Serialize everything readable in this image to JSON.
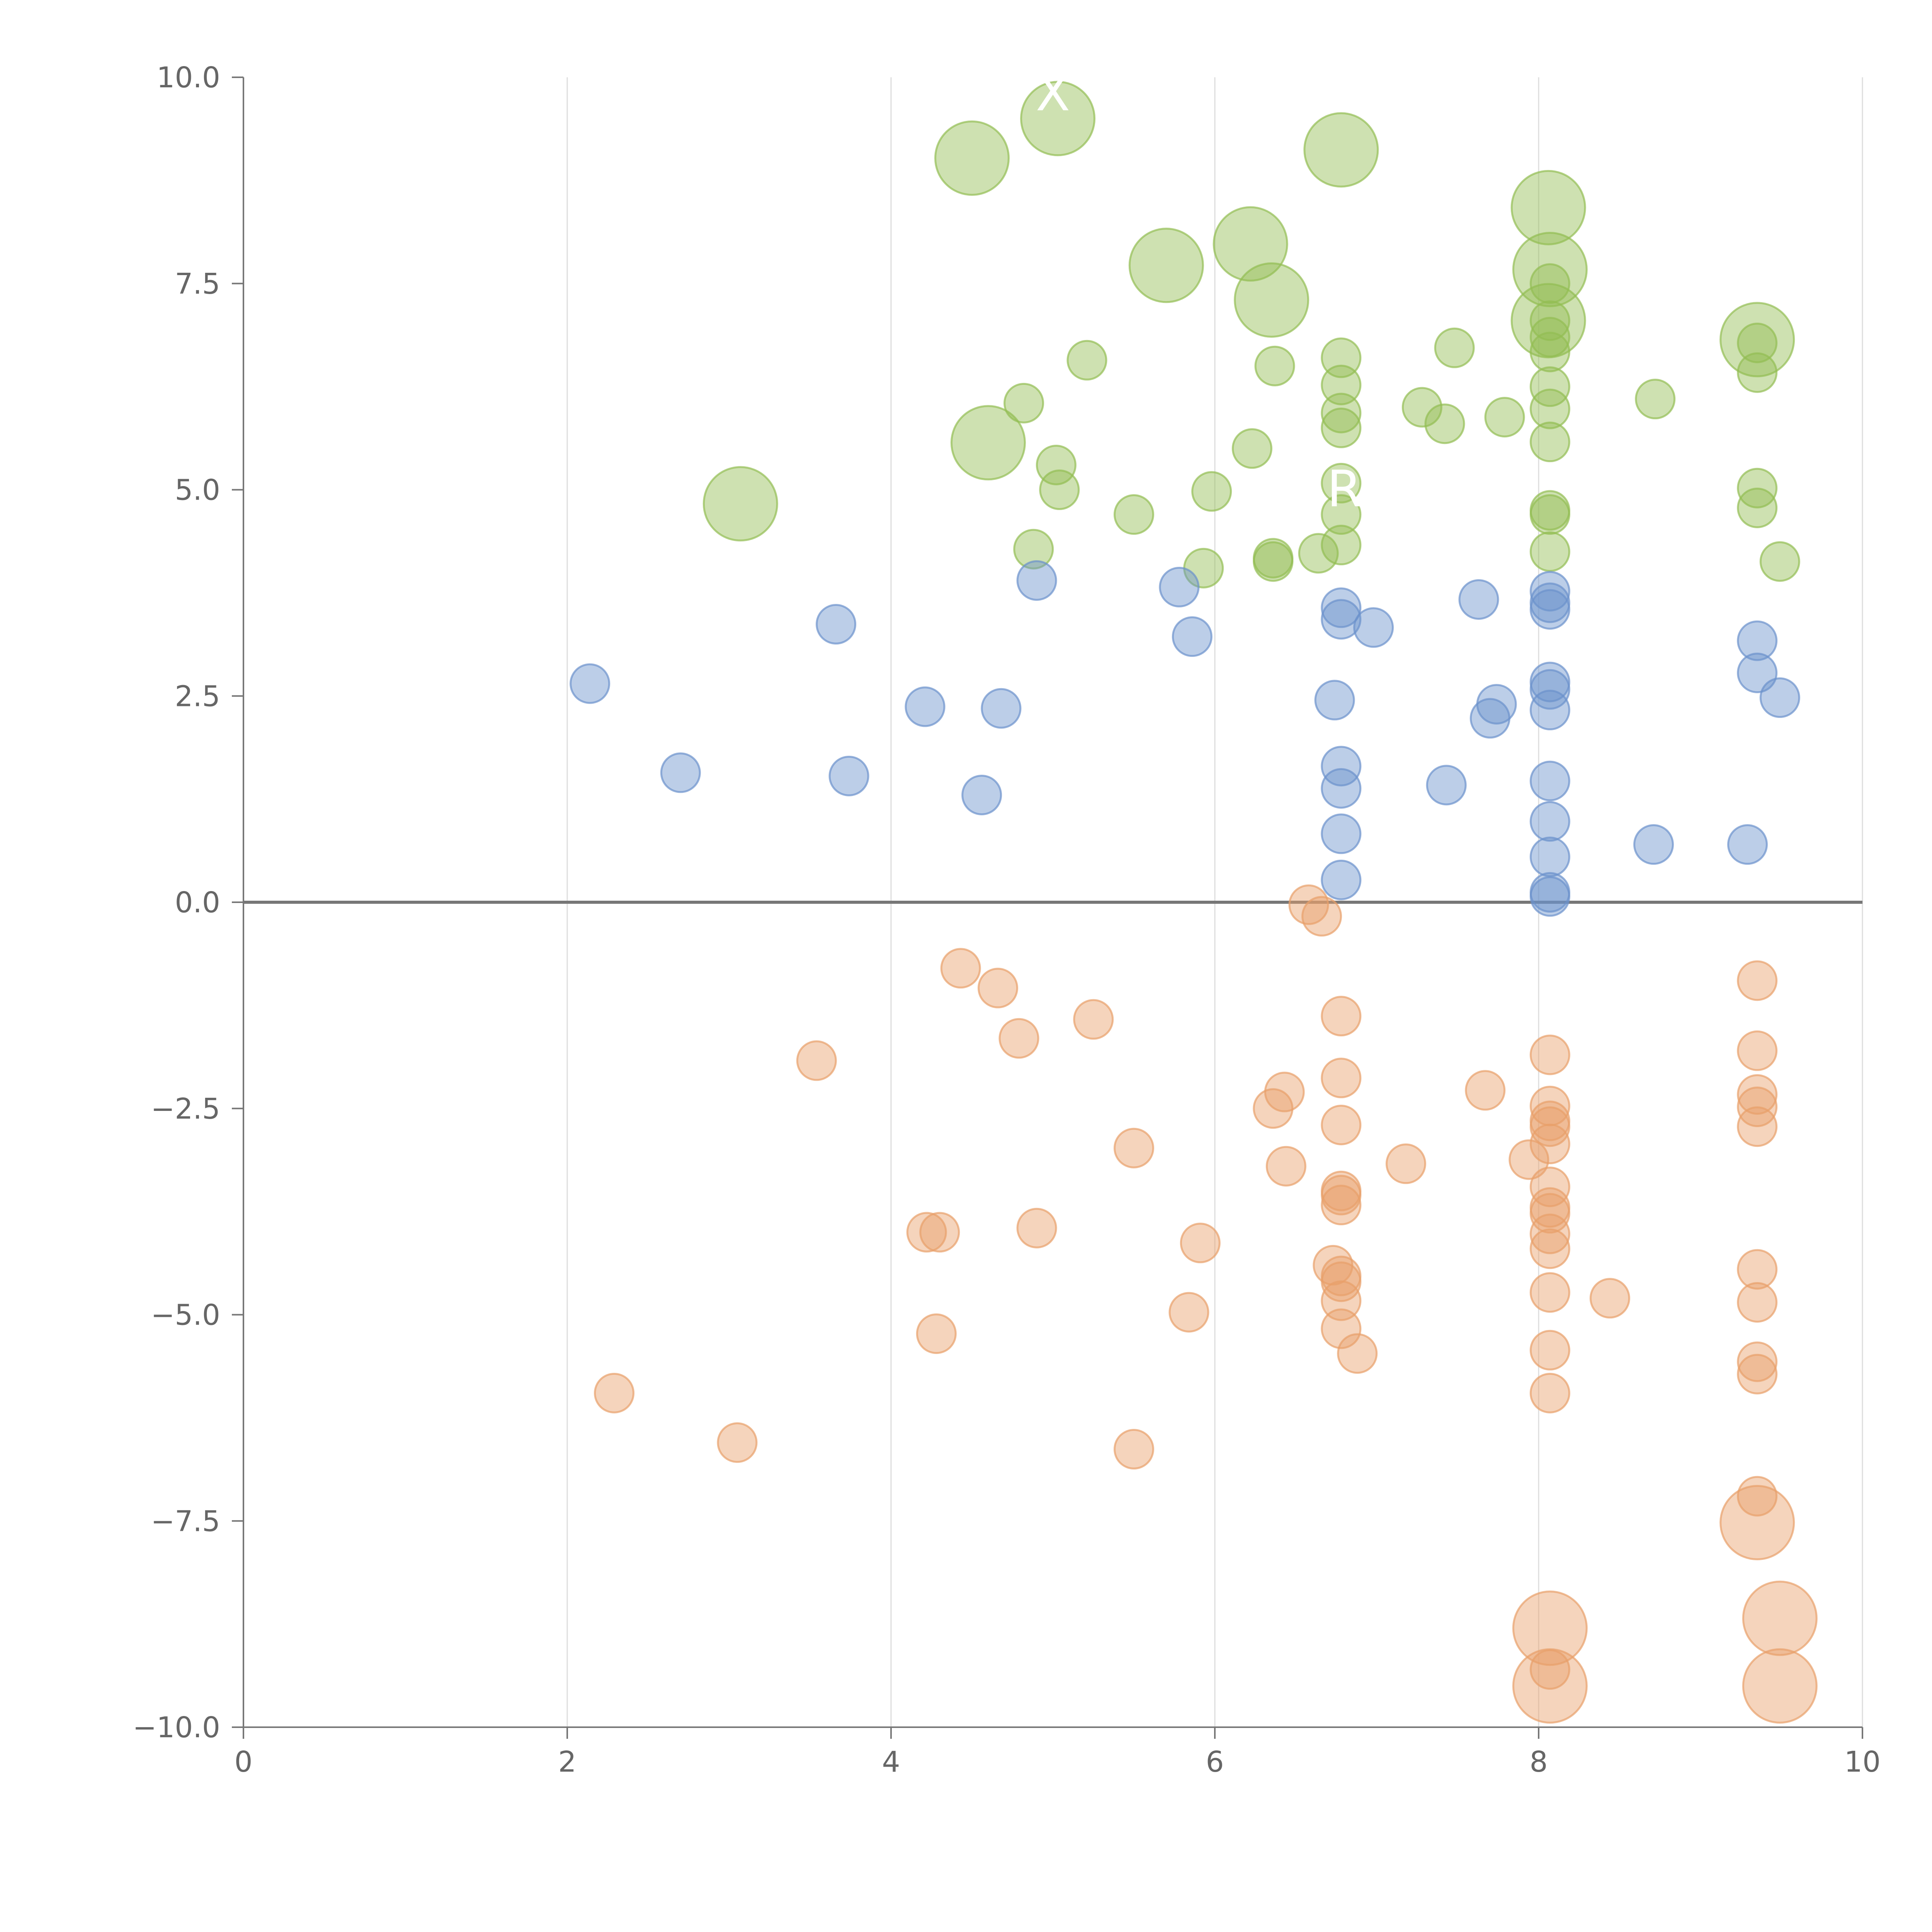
{
  "chart_data": {
    "type": "scatter",
    "title": "",
    "xlabel": "",
    "ylabel": "",
    "xlim": [
      0,
      10
    ],
    "ylim": [
      -10,
      10
    ],
    "grid": "vertical",
    "x_ticks": [
      0,
      2,
      4,
      6,
      8,
      10
    ],
    "y_ticks": [
      10,
      7.5,
      5,
      2.5,
      0,
      -2.5,
      -5,
      -7.5,
      -10
    ],
    "x_tick_labels": [
      "0",
      "2",
      "4",
      "6",
      "8",
      "10"
    ],
    "y_tick_labels": [
      "10.0",
      "7.5",
      "5.0",
      "2.5",
      "0.0",
      "−2.5",
      "−5.0",
      "−7.5",
      "−10.0"
    ],
    "annotations": [
      {
        "text": "X",
        "x": 5.0,
        "y": 9.6
      },
      {
        "text": "R",
        "x": 6.8,
        "y": 4.8
      }
    ],
    "series": [
      {
        "name": "green",
        "color": "#93bd52",
        "points": [
          [
            5.03,
            9.5,
            2
          ],
          [
            4.5,
            9.02,
            2
          ],
          [
            6.78,
            9.12,
            2
          ],
          [
            8.06,
            8.42,
            2
          ],
          [
            6.22,
            7.98,
            2
          ],
          [
            5.7,
            7.72,
            2
          ],
          [
            8.07,
            7.67,
            2
          ],
          [
            6.35,
            7.3,
            2
          ],
          [
            8.06,
            7.05,
            2
          ],
          [
            9.35,
            6.82,
            2
          ],
          [
            4.6,
            5.57,
            2
          ],
          [
            3.07,
            4.83,
            2
          ],
          [
            8.07,
            7.5,
            1
          ],
          [
            8.07,
            7.05,
            1
          ],
          [
            8.07,
            6.85,
            1
          ],
          [
            8.07,
            6.67,
            1
          ],
          [
            8.07,
            6.25,
            1
          ],
          [
            8.07,
            5.98,
            1
          ],
          [
            8.07,
            5.58,
            1
          ],
          [
            8.07,
            4.75,
            1
          ],
          [
            8.07,
            4.7,
            1
          ],
          [
            8.07,
            4.25,
            1
          ],
          [
            5.21,
            6.57,
            1
          ],
          [
            6.37,
            6.5,
            1
          ],
          [
            6.78,
            6.6,
            1
          ],
          [
            6.78,
            6.27,
            1
          ],
          [
            6.78,
            5.93,
            1
          ],
          [
            6.78,
            5.75,
            1
          ],
          [
            6.78,
            5.08,
            1
          ],
          [
            6.78,
            4.7,
            1
          ],
          [
            6.78,
            4.33,
            1
          ],
          [
            7.48,
            6.72,
            1
          ],
          [
            7.28,
            6.0,
            1
          ],
          [
            7.42,
            5.8,
            1
          ],
          [
            7.79,
            5.88,
            1
          ],
          [
            8.72,
            6.1,
            1
          ],
          [
            9.35,
            6.78,
            1
          ],
          [
            9.35,
            6.42,
            1
          ],
          [
            9.35,
            5.02,
            1
          ],
          [
            9.35,
            4.78,
            1
          ],
          [
            9.49,
            4.13,
            1
          ],
          [
            4.82,
            6.05,
            1
          ],
          [
            5.02,
            5.3,
            1
          ],
          [
            5.04,
            5.0,
            1
          ],
          [
            5.5,
            4.7,
            1
          ],
          [
            5.98,
            4.98,
            1
          ],
          [
            6.23,
            5.5,
            1
          ],
          [
            4.88,
            4.28,
            1
          ],
          [
            5.93,
            4.05,
            1
          ],
          [
            6.36,
            4.17,
            1
          ],
          [
            6.36,
            4.13,
            1
          ],
          [
            6.64,
            4.23,
            1
          ]
        ]
      },
      {
        "name": "blue",
        "color": "#6b92cc",
        "points": [
          [
            2.14,
            2.65,
            1
          ],
          [
            2.7,
            1.57,
            1
          ],
          [
            3.66,
            3.37,
            1
          ],
          [
            3.74,
            1.53,
            1
          ],
          [
            4.21,
            2.37,
            1
          ],
          [
            4.68,
            2.35,
            1
          ],
          [
            4.56,
            1.3,
            1
          ],
          [
            4.9,
            3.9,
            1
          ],
          [
            5.78,
            3.82,
            1
          ],
          [
            5.86,
            3.22,
            1
          ],
          [
            6.78,
            3.57,
            1
          ],
          [
            6.78,
            3.43,
            1
          ],
          [
            6.98,
            3.33,
            1
          ],
          [
            6.74,
            2.45,
            1
          ],
          [
            6.78,
            1.65,
            1
          ],
          [
            6.78,
            1.38,
            1
          ],
          [
            6.78,
            0.83,
            1
          ],
          [
            6.78,
            0.27,
            1
          ],
          [
            7.63,
            3.67,
            1
          ],
          [
            7.74,
            2.4,
            1
          ],
          [
            7.7,
            2.23,
            1
          ],
          [
            7.43,
            1.42,
            1
          ],
          [
            8.07,
            3.77,
            1
          ],
          [
            8.07,
            3.63,
            1
          ],
          [
            8.07,
            3.55,
            1
          ],
          [
            8.07,
            2.67,
            1
          ],
          [
            8.07,
            2.58,
            1
          ],
          [
            8.07,
            2.33,
            1
          ],
          [
            8.07,
            1.47,
            1
          ],
          [
            8.07,
            0.98,
            1
          ],
          [
            8.07,
            0.55,
            1
          ],
          [
            8.07,
            0.12,
            1
          ],
          [
            8.07,
            0.07,
            1
          ],
          [
            8.71,
            0.7,
            1
          ],
          [
            9.29,
            0.7,
            1
          ],
          [
            9.35,
            3.17,
            1
          ],
          [
            9.35,
            2.78,
            1
          ],
          [
            9.49,
            2.48,
            1
          ]
        ]
      },
      {
        "name": "orange",
        "color": "#e8a06a",
        "points": [
          [
            2.29,
            -5.95,
            1
          ],
          [
            3.05,
            -6.55,
            1
          ],
          [
            3.54,
            -1.92,
            1
          ],
          [
            4.43,
            -0.8,
            1
          ],
          [
            4.66,
            -1.04,
            1
          ],
          [
            4.79,
            -1.65,
            1
          ],
          [
            4.22,
            -4.0,
            1
          ],
          [
            4.3,
            -4.0,
            1
          ],
          [
            4.28,
            -5.23,
            1
          ],
          [
            4.9,
            -3.95,
            1
          ],
          [
            5.25,
            -1.42,
            1
          ],
          [
            5.5,
            -2.98,
            1
          ],
          [
            5.5,
            -6.63,
            1
          ],
          [
            5.84,
            -4.97,
            1
          ],
          [
            5.91,
            -4.13,
            1
          ],
          [
            6.36,
            -2.5,
            1
          ],
          [
            6.43,
            -2.3,
            1
          ],
          [
            6.44,
            -3.2,
            1
          ],
          [
            6.58,
            -0.03,
            1
          ],
          [
            6.66,
            -0.17,
            1
          ],
          [
            6.78,
            -1.38,
            1
          ],
          [
            6.78,
            -2.13,
            1
          ],
          [
            6.78,
            -2.7,
            1
          ],
          [
            6.78,
            -3.5,
            1
          ],
          [
            6.78,
            -3.55,
            1
          ],
          [
            6.78,
            -3.67,
            1
          ],
          [
            6.73,
            -4.4,
            1
          ],
          [
            6.78,
            -4.53,
            1
          ],
          [
            6.78,
            -4.6,
            1
          ],
          [
            6.78,
            -4.83,
            1
          ],
          [
            6.78,
            -5.17,
            1
          ],
          [
            6.88,
            -5.47,
            1
          ],
          [
            7.18,
            -3.17,
            1
          ],
          [
            7.67,
            -2.28,
            1
          ],
          [
            7.94,
            -3.12,
            1
          ],
          [
            8.07,
            -1.85,
            1
          ],
          [
            8.07,
            -2.47,
            1
          ],
          [
            8.07,
            -2.65,
            1
          ],
          [
            8.07,
            -2.72,
            1
          ],
          [
            8.07,
            -2.93,
            1
          ],
          [
            8.07,
            -3.45,
            1
          ],
          [
            8.07,
            -3.7,
            1
          ],
          [
            8.07,
            -3.77,
            1
          ],
          [
            8.07,
            -4.02,
            1
          ],
          [
            8.07,
            -4.2,
            1
          ],
          [
            8.07,
            -4.73,
            1
          ],
          [
            8.07,
            -5.43,
            1
          ],
          [
            8.07,
            -5.95,
            1
          ],
          [
            8.07,
            -9.3,
            1
          ],
          [
            8.44,
            -4.8,
            1
          ],
          [
            9.35,
            -0.95,
            1
          ],
          [
            9.35,
            -1.8,
            1
          ],
          [
            9.35,
            -2.33,
            1
          ],
          [
            9.35,
            -2.48,
            1
          ],
          [
            9.35,
            -2.72,
            1
          ],
          [
            9.35,
            -4.45,
            1
          ],
          [
            9.35,
            -4.85,
            1
          ],
          [
            9.35,
            -5.57,
            1
          ],
          [
            9.35,
            -5.72,
            1
          ],
          [
            9.35,
            -7.2,
            1
          ],
          [
            9.35,
            -7.52,
            2
          ],
          [
            8.07,
            -8.8,
            2
          ],
          [
            9.49,
            -8.68,
            2
          ],
          [
            8.07,
            -9.5,
            2
          ],
          [
            9.49,
            -9.5,
            2
          ]
        ]
      }
    ]
  }
}
